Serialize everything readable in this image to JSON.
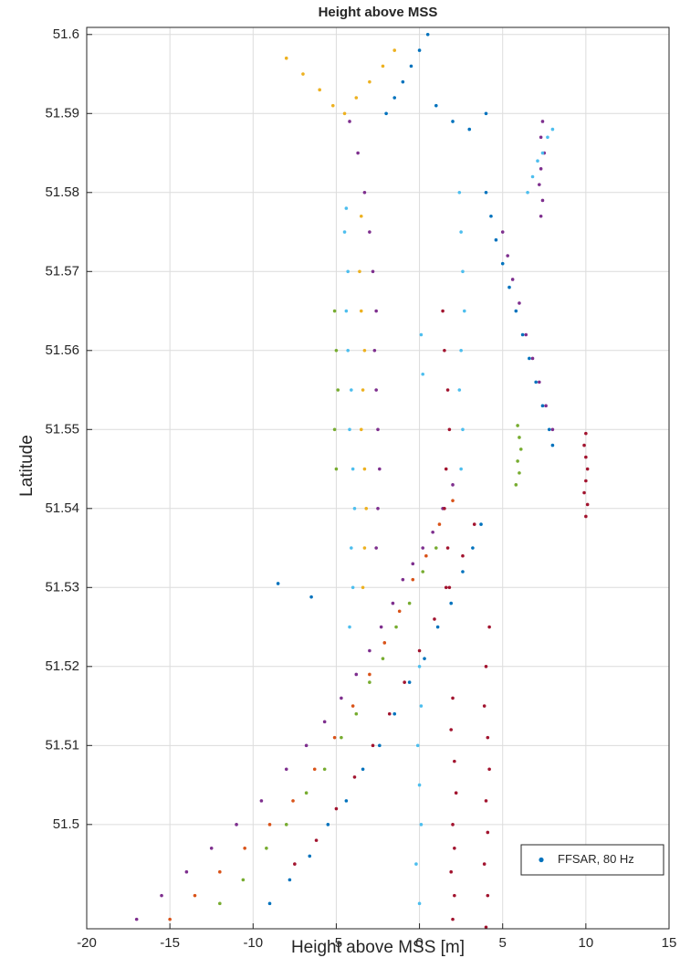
{
  "chart_data": {
    "type": "scatter",
    "title": "Height above MSS",
    "x_label": "Height above MSS [m]",
    "y_label": "Latitude",
    "xlim": [
      -20,
      15
    ],
    "ylim": [
      51.4868,
      51.6009
    ],
    "xticks": [
      -20,
      -15,
      -10,
      -5,
      0,
      5,
      10,
      15
    ],
    "yticks": [
      51.5,
      51.51,
      51.52,
      51.53,
      51.54,
      51.55,
      51.56,
      51.57,
      51.58,
      51.59,
      51.6
    ],
    "grid": true,
    "legend": {
      "label": "FFSAR, 80 Hz",
      "color": "#0072bd",
      "corner": "lower right"
    },
    "series": [
      {
        "color": "#7e2f8e",
        "x": [
          -17,
          -15.5,
          -14,
          -12.5,
          -11,
          -9.5,
          -8,
          -6.8,
          -5.7,
          -4.7,
          -3.8,
          -3,
          -2.3,
          -1.6,
          -1,
          -0.4,
          0.2,
          0.8,
          1.4,
          2
        ],
        "y": [
          51.488,
          51.491,
          51.494,
          51.497,
          51.5,
          51.503,
          51.507,
          51.51,
          51.513,
          51.516,
          51.519,
          51.522,
          51.525,
          51.528,
          51.531,
          51.533,
          51.535,
          51.537,
          51.54,
          51.543
        ]
      },
      {
        "color": "#d95319",
        "x": [
          -15,
          -13.5,
          -12,
          -10.5,
          -9,
          -7.6,
          -6.3,
          -5.1,
          -4,
          -3,
          -2.1,
          -1.2,
          -0.4,
          0.4,
          1.2,
          2
        ],
        "y": [
          51.488,
          51.491,
          51.494,
          51.497,
          51.5,
          51.503,
          51.507,
          51.511,
          51.515,
          51.519,
          51.523,
          51.527,
          51.531,
          51.534,
          51.538,
          51.541
        ]
      },
      {
        "color": "#77ac30",
        "x": [
          -12,
          -10.6,
          -9.2,
          -8,
          -6.8,
          -5.7,
          -4.7,
          -3.8,
          -3,
          -2.2,
          -1.4,
          -0.6,
          0.2,
          1
        ],
        "y": [
          51.49,
          51.493,
          51.497,
          51.5,
          51.504,
          51.507,
          51.511,
          51.514,
          51.518,
          51.521,
          51.525,
          51.528,
          51.532,
          51.535
        ]
      },
      {
        "color": "#0072bd",
        "x": [
          -9,
          -7.8,
          -6.6,
          -5.5,
          -4.4,
          -3.4,
          -2.4,
          -1.5,
          -0.6,
          0.3,
          1.1,
          1.9,
          2.6,
          3.2,
          3.7
        ],
        "y": [
          51.49,
          51.493,
          51.496,
          51.5,
          51.503,
          51.507,
          51.51,
          51.514,
          51.518,
          51.521,
          51.525,
          51.528,
          51.532,
          51.535,
          51.538
        ]
      },
      {
        "color": "#a2142f",
        "x": [
          -7.5,
          -6.2,
          -5,
          -3.9,
          -2.8,
          -1.8,
          -0.9,
          0,
          0.9,
          1.8,
          2.6,
          3.3
        ],
        "y": [
          51.495,
          51.498,
          51.502,
          51.506,
          51.51,
          51.514,
          51.518,
          51.522,
          51.526,
          51.53,
          51.534,
          51.538
        ]
      },
      {
        "color": "#a2142f",
        "x": [
          2,
          2.1,
          1.9,
          2.1,
          2,
          2.2,
          2.1,
          1.9,
          2
        ],
        "y": [
          51.488,
          51.491,
          51.494,
          51.497,
          51.5,
          51.504,
          51.508,
          51.512,
          51.516
        ]
      },
      {
        "color": "#4dbeee",
        "x": [
          -4.2,
          -4,
          -4.1,
          -3.9,
          -4,
          -4.2,
          -4.1,
          -4.3,
          -4.4,
          -4.3,
          -4.5,
          -4.4
        ],
        "y": [
          51.525,
          51.53,
          51.535,
          51.54,
          51.545,
          51.55,
          51.555,
          51.56,
          51.565,
          51.57,
          51.575,
          51.578
        ]
      },
      {
        "color": "#edb120",
        "x": [
          -3.4,
          -3.3,
          -3.2,
          -3.3,
          -3.5,
          -3.4,
          -3.3,
          -3.5,
          -3.6,
          -3.5
        ],
        "y": [
          51.53,
          51.535,
          51.54,
          51.545,
          51.55,
          51.555,
          51.56,
          51.565,
          51.57,
          51.577
        ]
      },
      {
        "color": "#7e2f8e",
        "x": [
          -2.6,
          -2.5,
          -2.4,
          -2.5,
          -2.6,
          -2.7,
          -2.6,
          -2.8,
          -3,
          -3.3,
          -3.7,
          -4.2
        ],
        "y": [
          51.535,
          51.54,
          51.545,
          51.55,
          51.555,
          51.56,
          51.565,
          51.57,
          51.575,
          51.58,
          51.585,
          51.589
        ]
      },
      {
        "color": "#4dbeee",
        "x": [
          0,
          -0.2,
          0.1,
          0,
          -0.1,
          0.1,
          0,
          0.2,
          0.1
        ],
        "y": [
          51.49,
          51.495,
          51.5,
          51.505,
          51.51,
          51.515,
          51.52,
          51.557,
          51.562
        ]
      },
      {
        "color": "#a2142f",
        "x": [
          1.6,
          1.7,
          1.5,
          1.6,
          1.8,
          1.7,
          1.5,
          1.4
        ],
        "y": [
          51.53,
          51.535,
          51.54,
          51.545,
          51.55,
          51.555,
          51.56,
          51.565
        ]
      },
      {
        "color": "#a2142f",
        "x": [
          4,
          4.1,
          3.9,
          4.1,
          4,
          4.2,
          4.1,
          3.9,
          4,
          4.2
        ],
        "y": [
          51.487,
          51.491,
          51.495,
          51.499,
          51.503,
          51.507,
          51.511,
          51.515,
          51.52,
          51.525
        ]
      },
      {
        "color": "#0072bd",
        "x": [
          4,
          4.3,
          4.6,
          5,
          5.4,
          5.8,
          6.2,
          6.6,
          7,
          7.4,
          7.8,
          8
        ],
        "y": [
          51.58,
          51.577,
          51.574,
          51.571,
          51.568,
          51.565,
          51.562,
          51.559,
          51.556,
          51.553,
          51.55,
          51.548
        ]
      },
      {
        "color": "#7e2f8e",
        "x": [
          5,
          5.3,
          5.6,
          6,
          6.4,
          6.8,
          7.2,
          7.6,
          8
        ],
        "y": [
          51.575,
          51.572,
          51.569,
          51.566,
          51.562,
          51.559,
          51.556,
          51.553,
          51.55
        ]
      },
      {
        "color": "#7e2f8e",
        "x": [
          7.3,
          7.4,
          7.2,
          7.3,
          7.5,
          7.3,
          7.4
        ],
        "y": [
          51.577,
          51.579,
          51.581,
          51.583,
          51.585,
          51.587,
          51.589
        ]
      },
      {
        "color": "#4dbeee",
        "x": [
          6.5,
          6.8,
          7.1,
          7.4,
          7.7,
          8
        ],
        "y": [
          51.58,
          51.582,
          51.584,
          51.585,
          51.587,
          51.588
        ]
      },
      {
        "color": "#a2142f",
        "x": [
          10,
          10.1,
          9.9,
          10,
          10.1,
          10,
          9.9,
          10
        ],
        "y": [
          51.539,
          51.5405,
          51.542,
          51.5435,
          51.545,
          51.5465,
          51.548,
          51.5495
        ]
      },
      {
        "color": "#77ac30",
        "x": [
          5.8,
          6,
          5.9,
          6.1,
          6,
          5.9
        ],
        "y": [
          51.543,
          51.5445,
          51.546,
          51.5475,
          51.549,
          51.5505
        ]
      },
      {
        "color": "#edb120",
        "x": [
          -8,
          -7,
          -6,
          -5.2,
          -4.5,
          -3.8,
          -3,
          -2.2,
          -1.5
        ],
        "y": [
          51.597,
          51.595,
          51.593,
          51.591,
          51.59,
          51.592,
          51.594,
          51.596,
          51.598
        ]
      },
      {
        "color": "#0072bd",
        "x": [
          -2,
          -1.5,
          -1,
          -0.5,
          0,
          0.5,
          1,
          2,
          3,
          4
        ],
        "y": [
          51.59,
          51.592,
          51.594,
          51.596,
          51.598,
          51.6,
          51.591,
          51.589,
          51.588,
          51.59
        ]
      },
      {
        "color": "#4dbeee",
        "x": [
          2.5,
          2.6,
          2.4,
          2.5,
          2.7,
          2.6,
          2.5,
          2.4
        ],
        "y": [
          51.545,
          51.55,
          51.555,
          51.56,
          51.565,
          51.57,
          51.575,
          51.58
        ]
      },
      {
        "color": "#77ac30",
        "x": [
          -5,
          -5.1,
          -4.9,
          -5,
          -5.1
        ],
        "y": [
          51.545,
          51.55,
          51.555,
          51.56,
          51.565
        ]
      },
      {
        "color": "#0072bd",
        "x": [
          -8.5,
          -6.5
        ],
        "y": [
          51.5305,
          51.5288
        ]
      }
    ]
  }
}
